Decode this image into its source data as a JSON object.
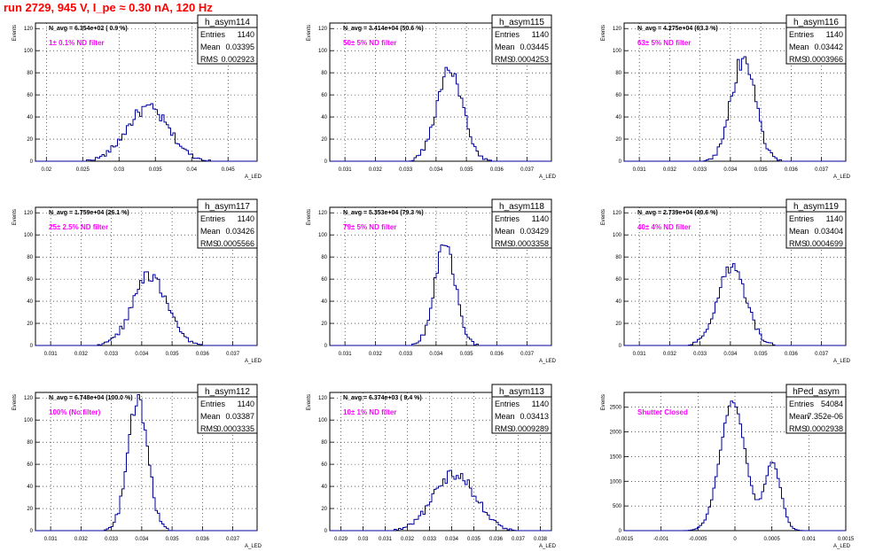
{
  "page_title": "run 2729,   945 V, I_pe ≈ 0.30 nA, 120 Hz",
  "colors": {
    "title": "#ff0000",
    "note": "#ff00ff",
    "hist": "#000099",
    "axis": "#000000",
    "grid": "#000000"
  },
  "chart_data": [
    {
      "type": "histogram",
      "name": "h_asym114",
      "ylabel": "Events",
      "xlabel": "A_LED",
      "navg": "N_avg = 6.354e+02 ( 0.9 %)",
      "note": "1± 0.1% ND filter",
      "stats": {
        "entries": "1140",
        "mean": "0.03395",
        "rms": "0.002923"
      },
      "xlim": [
        0.0185,
        0.049
      ],
      "ylim": [
        0,
        125
      ],
      "xticks": [
        "0.02",
        "0.025",
        "0.03",
        "0.035",
        "0.04",
        "0.045"
      ],
      "xtick_values": [
        0.02,
        0.025,
        0.03,
        0.035,
        0.04,
        0.045
      ],
      "yticks": [
        0,
        20,
        40,
        60,
        80,
        100,
        120
      ],
      "grid": true,
      "dist": [
        {
          "mu": 0.03395,
          "sigma": 0.0029,
          "peak": 48
        }
      ],
      "stat_box_height": 3
    },
    {
      "type": "histogram",
      "name": "h_asym115",
      "ylabel": "Events",
      "xlabel": "A_LED",
      "navg": "N_avg = 3.414e+04 (50.6 %)",
      "note": "50± 5% ND filter",
      "stats": {
        "entries": "1140",
        "mean": "0.03445",
        "rms": "0.0004253"
      },
      "xlim": [
        0.0305,
        0.0378
      ],
      "ylim": [
        0,
        125
      ],
      "xticks": [
        "0.031",
        "0.032",
        "0.033",
        "0.034",
        "0.035",
        "0.036",
        "0.037"
      ],
      "xtick_values": [
        0.031,
        0.032,
        0.033,
        0.034,
        0.035,
        0.036,
        0.037
      ],
      "yticks": [
        0,
        20,
        40,
        60,
        80,
        100,
        120
      ],
      "grid": true,
      "dist": [
        {
          "mu": 0.03445,
          "sigma": 0.00043,
          "peak": 82
        }
      ]
    },
    {
      "type": "histogram",
      "name": "h_asym116",
      "ylabel": "Events",
      "xlabel": "A_LED",
      "navg": "N_avg = 4.275e+04 (63.3 %)",
      "note": "63± 5% ND filter",
      "stats": {
        "entries": "1140",
        "mean": "0.03442",
        "rms": "0.0003966"
      },
      "xlim": [
        0.0305,
        0.0378
      ],
      "ylim": [
        0,
        125
      ],
      "xticks": [
        "0.031",
        "0.032",
        "0.033",
        "0.034",
        "0.035",
        "0.036",
        "0.037"
      ],
      "xtick_values": [
        0.031,
        0.032,
        0.033,
        0.034,
        0.035,
        0.036,
        0.037
      ],
      "yticks": [
        0,
        20,
        40,
        60,
        80,
        100,
        120
      ],
      "grid": true,
      "dist": [
        {
          "mu": 0.03442,
          "sigma": 0.0004,
          "peak": 92
        }
      ]
    },
    {
      "type": "histogram",
      "name": "h_asym117",
      "ylabel": "Events",
      "xlabel": "A_LED",
      "navg": "N_avg = 1.759e+04 (26.1 %)",
      "note": "25± 2.5% ND filter",
      "stats": {
        "entries": "1140",
        "mean": "0.03426",
        "rms": "0.0005566"
      },
      "xlim": [
        0.0305,
        0.0378
      ],
      "ylim": [
        0,
        125
      ],
      "xticks": [
        "0.031",
        "0.032",
        "0.033",
        "0.034",
        "0.035",
        "0.036",
        "0.037"
      ],
      "xtick_values": [
        0.031,
        0.032,
        0.033,
        0.034,
        0.035,
        0.036,
        0.037
      ],
      "yticks": [
        0,
        20,
        40,
        60,
        80,
        100,
        120
      ],
      "grid": true,
      "dist": [
        {
          "mu": 0.03426,
          "sigma": 0.00056,
          "peak": 63
        }
      ]
    },
    {
      "type": "histogram",
      "name": "h_asym118",
      "ylabel": "Events",
      "xlabel": "A_LED",
      "navg": "N_avg = 5.353e+04 (79.3 %)",
      "note": "79± 5% ND filter",
      "stats": {
        "entries": "1140",
        "mean": "0.03429",
        "rms": "0.0003358"
      },
      "xlim": [
        0.0305,
        0.0378
      ],
      "ylim": [
        0,
        125
      ],
      "xticks": [
        "0.031",
        "0.032",
        "0.033",
        "0.034",
        "0.035",
        "0.036",
        "0.037"
      ],
      "xtick_values": [
        0.031,
        0.032,
        0.033,
        0.034,
        0.035,
        0.036,
        0.037
      ],
      "yticks": [
        0,
        20,
        40,
        60,
        80,
        100,
        120
      ],
      "grid": true,
      "dist": [
        {
          "mu": 0.03429,
          "sigma": 0.00034,
          "peak": 93
        }
      ]
    },
    {
      "type": "histogram",
      "name": "h_asym119",
      "ylabel": "Events",
      "xlabel": "A_LED",
      "navg": "N_avg = 2.739e+04 (40.6 %)",
      "note": "40± 4% ND filter",
      "stats": {
        "entries": "1140",
        "mean": "0.03404",
        "rms": "0.0004699"
      },
      "xlim": [
        0.0305,
        0.0378
      ],
      "ylim": [
        0,
        125
      ],
      "xticks": [
        "0.031",
        "0.032",
        "0.033",
        "0.034",
        "0.035",
        "0.036",
        "0.037"
      ],
      "xtick_values": [
        0.031,
        0.032,
        0.033,
        0.034,
        0.035,
        0.036,
        0.037
      ],
      "yticks": [
        0,
        20,
        40,
        60,
        80,
        100,
        120
      ],
      "grid": true,
      "dist": [
        {
          "mu": 0.03404,
          "sigma": 0.00047,
          "peak": 70
        }
      ]
    },
    {
      "type": "histogram",
      "name": "h_asym112",
      "ylabel": "Events",
      "xlabel": "A_LED",
      "navg": "N_avg = 6.748e+04 (100.0 %)",
      "note": "100% (No filter)",
      "stats": {
        "entries": "1140",
        "mean": "0.03387",
        "rms": "0.0003335"
      },
      "xlim": [
        0.0305,
        0.0378
      ],
      "ylim": [
        0,
        125
      ],
      "xticks": [
        "0.031",
        "0.032",
        "0.033",
        "0.034",
        "0.035",
        "0.036",
        "0.037"
      ],
      "xtick_values": [
        0.031,
        0.032,
        0.033,
        0.034,
        0.035,
        0.036,
        0.037
      ],
      "yticks": [
        0,
        20,
        40,
        60,
        80,
        100,
        120
      ],
      "grid": true,
      "dist": [
        {
          "mu": 0.03387,
          "sigma": 0.00033,
          "peak": 118
        }
      ]
    },
    {
      "type": "histogram",
      "name": "h_asym113",
      "ylabel": "Events",
      "xlabel": "A_LED",
      "navg": "N_avg = 6.374e+03 ( 9.4 %)",
      "note": "10± 1% ND filter",
      "stats": {
        "entries": "1140",
        "mean": "0.03413",
        "rms": "0.0009289"
      },
      "xlim": [
        0.0285,
        0.0385
      ],
      "ylim": [
        0,
        125
      ],
      "xticks": [
        "0.029",
        "0.03",
        "0.031",
        "0.032",
        "0.033",
        "0.034",
        "0.035",
        "0.036",
        "0.037",
        "0.038"
      ],
      "xtick_values": [
        0.029,
        0.03,
        0.031,
        0.032,
        0.033,
        0.034,
        0.035,
        0.036,
        0.037,
        0.038
      ],
      "yticks": [
        0,
        20,
        40,
        60,
        80,
        100,
        120
      ],
      "grid": true,
      "dist": [
        {
          "mu": 0.03413,
          "sigma": 0.00093,
          "peak": 52
        }
      ]
    },
    {
      "type": "histogram",
      "name": "hPed_asym",
      "ylabel": "Events",
      "xlabel": "A_LED",
      "navg": "",
      "note": "Shutter Closed",
      "stats": {
        "entries": "54084",
        "mean": "7.352e-06",
        "rms": "0.0002938"
      },
      "xlim": [
        -0.0015,
        0.0015
      ],
      "ylim": [
        0,
        2800
      ],
      "xticks": [
        "-0.0015",
        "-0.001",
        "-0.0005",
        "0",
        "0.0005",
        "0.001",
        "0.0015"
      ],
      "xtick_values": [
        -0.0015,
        -0.001,
        -0.0005,
        0,
        0.0005,
        0.001,
        0.0015
      ],
      "yticks": [
        0,
        500,
        1000,
        1500,
        2000,
        2500
      ],
      "grid": true,
      "dist": [
        {
          "mu": -3e-05,
          "sigma": 0.00017,
          "peak": 2600
        },
        {
          "mu": 0.00051,
          "sigma": 0.00011,
          "peak": 1350
        }
      ]
    }
  ]
}
